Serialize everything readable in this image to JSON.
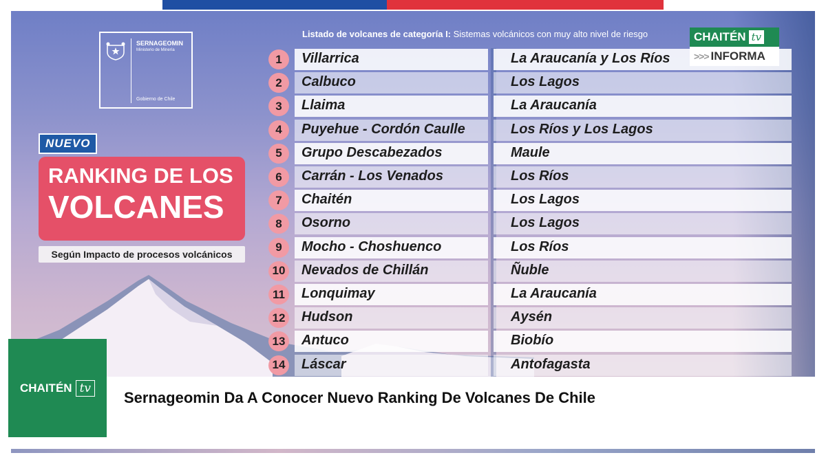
{
  "logo": {
    "org_name": "SERNAGEOMIN",
    "ministry": "Ministerio de Minería",
    "government": "Gobierno de Chile"
  },
  "badge": "NUEVO",
  "title": {
    "line1": "RANKING DE LOS",
    "line2": "VOLCANES"
  },
  "subtitle": "Según Impacto de procesos volcánicos",
  "list_header": {
    "bold": "Listado de volcanes de categoría I:",
    "rest": " Sistemas volcánicos con muy alto nivel de riesgo"
  },
  "volcanoes": [
    {
      "rank": "1",
      "name": "Villarrica",
      "region": "La Araucanía y Los Ríos"
    },
    {
      "rank": "2",
      "name": "Calbuco",
      "region": "Los Lagos"
    },
    {
      "rank": "3",
      "name": "Llaima",
      "region": "La Araucanía"
    },
    {
      "rank": "4",
      "name": "Puyehue - Cordón Caulle",
      "region": "Los Ríos y Los Lagos"
    },
    {
      "rank": "5",
      "name": "Grupo Descabezados",
      "region": "Maule"
    },
    {
      "rank": "6",
      "name": "Carrán - Los Venados",
      "region": "Los Ríos"
    },
    {
      "rank": "7",
      "name": "Chaitén",
      "region": "Los Lagos"
    },
    {
      "rank": "8",
      "name": "Osorno",
      "region": "Los Lagos"
    },
    {
      "rank": "9",
      "name": "Mocho - Choshuenco",
      "region": "Los Ríos"
    },
    {
      "rank": "10",
      "name": "Nevados de Chillán",
      "region": "Ñuble"
    },
    {
      "rank": "11",
      "name": "Lonquimay",
      "region": "La Araucanía"
    },
    {
      "rank": "12",
      "name": "Hudson",
      "region": "Aysén"
    },
    {
      "rank": "13",
      "name": "Antuco",
      "region": "Biobío"
    },
    {
      "rank": "14",
      "name": "Láscar",
      "region": "Antofagasta"
    }
  ],
  "corner_brand": {
    "name": "CHAITÉN",
    "tv": "tv",
    "arrows": ">>>",
    "informa": "INFORMA"
  },
  "square_brand": {
    "name": "CHAITÉN",
    "tv": "tv"
  },
  "headline": "Sernageomin Da A Conocer Nuevo Ranking De Volcanes De Chile",
  "colors": {
    "accent_red": "#e55068",
    "badge_blue": "#1f5aa6",
    "brand_green": "#1f8a53",
    "rank_circle": "#f19aa4"
  },
  "icons": [
    "chile-coat-of-arms-icon",
    "mountain-illustration"
  ]
}
